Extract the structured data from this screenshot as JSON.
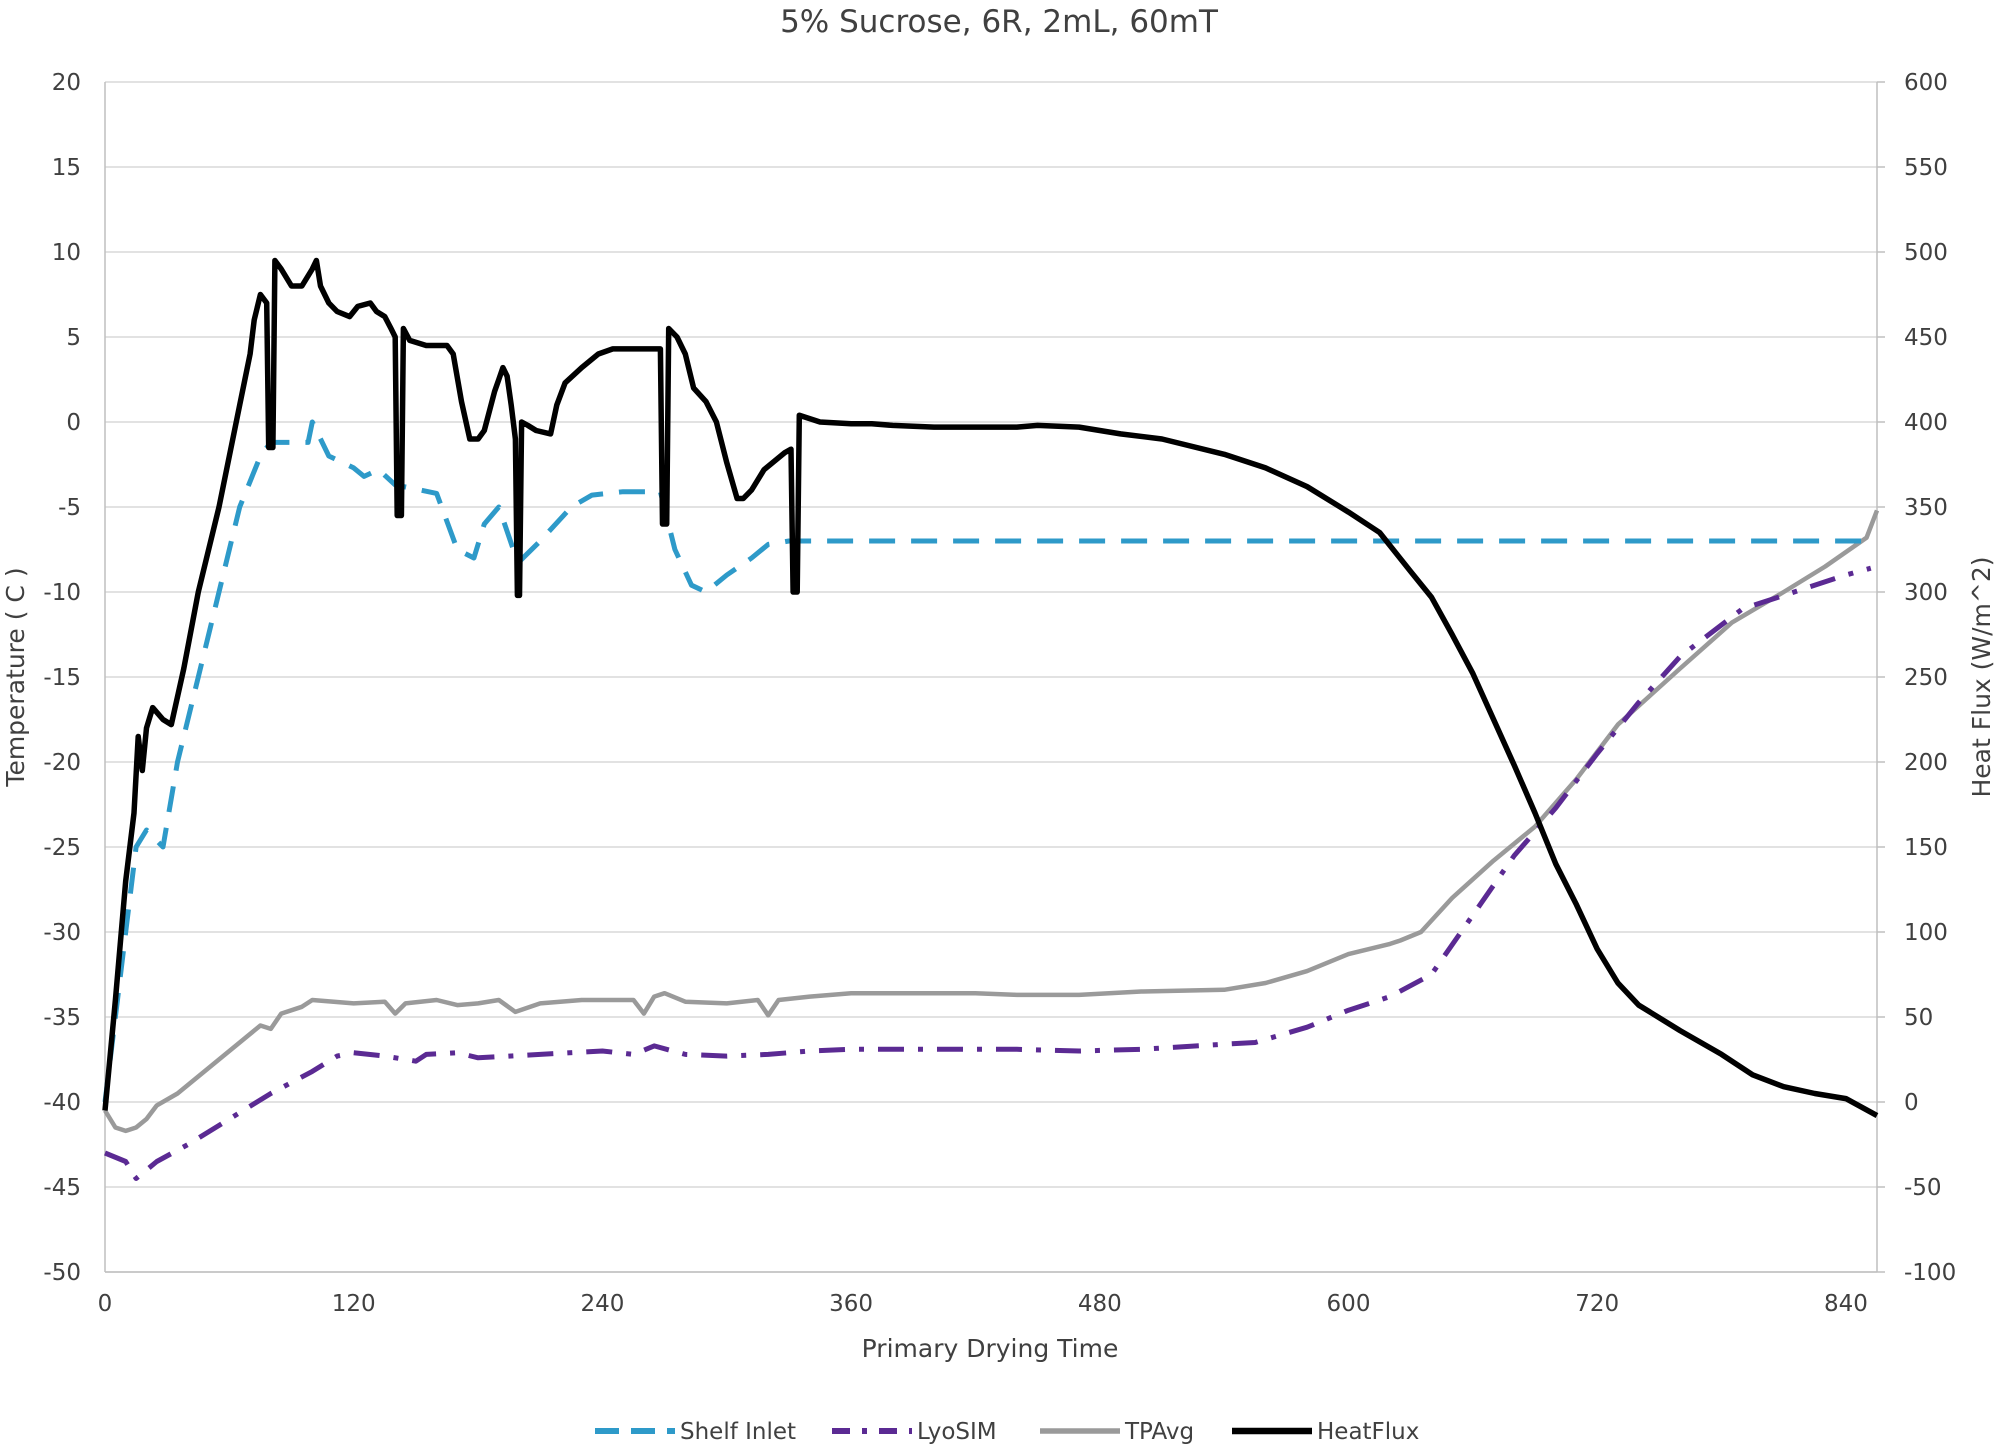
{
  "chart_data": {
    "type": "line",
    "title": "5% Sucrose, 6R, 2mL, 60mT",
    "xlabel": "Primary Drying Time",
    "ylabel": "Temperature ( C )",
    "y2label": "Heat Flux (W/m^2)",
    "xlim": [
      0,
      855
    ],
    "ylim": [
      -50,
      20
    ],
    "y2lim": [
      -100,
      600
    ],
    "xticks": [
      "0",
      "120",
      "240",
      "360",
      "480",
      "600",
      "720",
      "840"
    ],
    "yticks": [
      "20",
      "15",
      "10",
      "5",
      "0",
      "-5",
      "-10",
      "-15",
      "-20",
      "-25",
      "-30",
      "-35",
      "-40",
      "-45",
      "-50"
    ],
    "y2ticks": [
      "600",
      "550",
      "500",
      "450",
      "400",
      "350",
      "300",
      "250",
      "200",
      "150",
      "100",
      "50",
      "0",
      "-50",
      "-100"
    ],
    "grid": "horizontal",
    "legend_position": "bottom",
    "colors": {
      "shelf_inlet": "#2e9ac9",
      "lyosim": "#5b2a93",
      "tpavg": "#9a9a9a",
      "heatflux": "#000000",
      "grid": "#d9d9d9",
      "axis": "#bfbfbf"
    },
    "series": [
      {
        "name": "Shelf Inlet",
        "axis": "left",
        "style": "dashed",
        "points": [
          [
            0,
            -40
          ],
          [
            5,
            -35
          ],
          [
            10,
            -30
          ],
          [
            15,
            -25
          ],
          [
            20,
            -24
          ],
          [
            28,
            -25
          ],
          [
            35,
            -20
          ],
          [
            45,
            -15
          ],
          [
            55,
            -10
          ],
          [
            65,
            -5
          ],
          [
            75,
            -2
          ],
          [
            80,
            -1.2
          ],
          [
            98,
            -1.2
          ],
          [
            100,
            0
          ],
          [
            108,
            -2
          ],
          [
            120,
            -2.7
          ],
          [
            125,
            -3.2
          ],
          [
            132,
            -2.8
          ],
          [
            140,
            -3.7
          ],
          [
            160,
            -4.2
          ],
          [
            170,
            -7.5
          ],
          [
            178,
            -8.0
          ],
          [
            183,
            -6
          ],
          [
            190,
            -5
          ],
          [
            197,
            -7.5
          ],
          [
            200,
            -8.2
          ],
          [
            210,
            -7
          ],
          [
            225,
            -5
          ],
          [
            235,
            -4.3
          ],
          [
            250,
            -4.1
          ],
          [
            268,
            -4.1
          ],
          [
            275,
            -7.5
          ],
          [
            283,
            -9.6
          ],
          [
            290,
            -10.0
          ],
          [
            300,
            -9
          ],
          [
            312,
            -8
          ],
          [
            320,
            -7.2
          ],
          [
            330,
            -7.0
          ],
          [
            855,
            -7.0
          ]
        ]
      },
      {
        "name": "LyoSIM",
        "axis": "left",
        "style": "dashdot",
        "points": [
          [
            0,
            -43
          ],
          [
            10,
            -43.5
          ],
          [
            15,
            -44.5
          ],
          [
            25,
            -43.5
          ],
          [
            40,
            -42.5
          ],
          [
            60,
            -41
          ],
          [
            80,
            -39.5
          ],
          [
            100,
            -38.2
          ],
          [
            112,
            -37.3
          ],
          [
            120,
            -37.1
          ],
          [
            135,
            -37.3
          ],
          [
            150,
            -37.6
          ],
          [
            155,
            -37.2
          ],
          [
            170,
            -37.1
          ],
          [
            180,
            -37.4
          ],
          [
            195,
            -37.3
          ],
          [
            210,
            -37.2
          ],
          [
            240,
            -37.0
          ],
          [
            255,
            -37.2
          ],
          [
            265,
            -36.7
          ],
          [
            280,
            -37.2
          ],
          [
            300,
            -37.3
          ],
          [
            320,
            -37.2
          ],
          [
            340,
            -37.0
          ],
          [
            360,
            -36.9
          ],
          [
            400,
            -36.9
          ],
          [
            440,
            -36.9
          ],
          [
            470,
            -37.0
          ],
          [
            500,
            -36.9
          ],
          [
            540,
            -36.6
          ],
          [
            555,
            -36.5
          ],
          [
            580,
            -35.6
          ],
          [
            600,
            -34.6
          ],
          [
            620,
            -33.8
          ],
          [
            640,
            -32.5
          ],
          [
            660,
            -29.0
          ],
          [
            680,
            -25.5
          ],
          [
            700,
            -22.7
          ],
          [
            720,
            -19.5
          ],
          [
            740,
            -16.5
          ],
          [
            760,
            -13.8
          ],
          [
            790,
            -11.0
          ],
          [
            820,
            -9.8
          ],
          [
            840,
            -9.0
          ],
          [
            852,
            -8.6
          ]
        ]
      },
      {
        "name": "TPAvg",
        "axis": "left",
        "style": "solid",
        "points": [
          [
            0,
            -40.5
          ],
          [
            5,
            -41.5
          ],
          [
            10,
            -41.7
          ],
          [
            15,
            -41.5
          ],
          [
            20,
            -41.0
          ],
          [
            25,
            -40.2
          ],
          [
            35,
            -39.5
          ],
          [
            50,
            -38
          ],
          [
            65,
            -36.5
          ],
          [
            75,
            -35.5
          ],
          [
            80,
            -35.7
          ],
          [
            85,
            -34.8
          ],
          [
            95,
            -34.4
          ],
          [
            100,
            -34.0
          ],
          [
            120,
            -34.2
          ],
          [
            135,
            -34.1
          ],
          [
            140,
            -34.8
          ],
          [
            145,
            -34.2
          ],
          [
            160,
            -34.0
          ],
          [
            170,
            -34.3
          ],
          [
            180,
            -34.2
          ],
          [
            190,
            -34.0
          ],
          [
            198,
            -34.7
          ],
          [
            210,
            -34.2
          ],
          [
            230,
            -34.0
          ],
          [
            255,
            -34.0
          ],
          [
            260,
            -34.8
          ],
          [
            265,
            -33.8
          ],
          [
            270,
            -33.6
          ],
          [
            280,
            -34.1
          ],
          [
            300,
            -34.2
          ],
          [
            315,
            -34.0
          ],
          [
            320,
            -34.9
          ],
          [
            325,
            -34.0
          ],
          [
            340,
            -33.8
          ],
          [
            360,
            -33.6
          ],
          [
            400,
            -33.6
          ],
          [
            420,
            -33.6
          ],
          [
            440,
            -33.7
          ],
          [
            470,
            -33.7
          ],
          [
            500,
            -33.5
          ],
          [
            540,
            -33.4
          ],
          [
            560,
            -33.0
          ],
          [
            580,
            -32.3
          ],
          [
            600,
            -31.3
          ],
          [
            620,
            -30.7
          ],
          [
            625,
            -30.5
          ],
          [
            635,
            -30.0
          ],
          [
            650,
            -28
          ],
          [
            670,
            -25.8
          ],
          [
            690,
            -23.8
          ],
          [
            710,
            -21
          ],
          [
            730,
            -17.8
          ],
          [
            760,
            -14.5
          ],
          [
            785,
            -11.8
          ],
          [
            810,
            -10.0
          ],
          [
            830,
            -8.5
          ],
          [
            850,
            -6.8
          ],
          [
            855,
            -5.2
          ]
        ]
      },
      {
        "name": "HeatFlux",
        "axis": "right",
        "style": "solid",
        "points": [
          [
            0,
            -5
          ],
          [
            5,
            60
          ],
          [
            10,
            130
          ],
          [
            14,
            170
          ],
          [
            16,
            215
          ],
          [
            18,
            195
          ],
          [
            20,
            220
          ],
          [
            23,
            232
          ],
          [
            28,
            225
          ],
          [
            32,
            222
          ],
          [
            38,
            255
          ],
          [
            45,
            300
          ],
          [
            55,
            350
          ],
          [
            65,
            410
          ],
          [
            70,
            440
          ],
          [
            72,
            460
          ],
          [
            75,
            475
          ],
          [
            78,
            470
          ],
          [
            79,
            385
          ],
          [
            81,
            385
          ],
          [
            82,
            495
          ],
          [
            85,
            490
          ],
          [
            90,
            480
          ],
          [
            95,
            480
          ],
          [
            100,
            490
          ],
          [
            102,
            495
          ],
          [
            104,
            480
          ],
          [
            108,
            470
          ],
          [
            112,
            465
          ],
          [
            118,
            462
          ],
          [
            122,
            468
          ],
          [
            128,
            470
          ],
          [
            131,
            465
          ],
          [
            135,
            462
          ],
          [
            138,
            455
          ],
          [
            140,
            450
          ],
          [
            141,
            345
          ],
          [
            143,
            345
          ],
          [
            144,
            455
          ],
          [
            147,
            448
          ],
          [
            155,
            445
          ],
          [
            165,
            445
          ],
          [
            168,
            440
          ],
          [
            172,
            412
          ],
          [
            176,
            390
          ],
          [
            180,
            390
          ],
          [
            183,
            395
          ],
          [
            188,
            418
          ],
          [
            190,
            425
          ],
          [
            192,
            432
          ],
          [
            194,
            427
          ],
          [
            196,
            410
          ],
          [
            198,
            390
          ],
          [
            199,
            298
          ],
          [
            200,
            298
          ],
          [
            201,
            400
          ],
          [
            204,
            398
          ],
          [
            208,
            395
          ],
          [
            215,
            393
          ],
          [
            218,
            410
          ],
          [
            222,
            423
          ],
          [
            230,
            432
          ],
          [
            238,
            440
          ],
          [
            245,
            443
          ],
          [
            262,
            443
          ],
          [
            268,
            443
          ],
          [
            269,
            340
          ],
          [
            271,
            340
          ],
          [
            272,
            455
          ],
          [
            276,
            450
          ],
          [
            280,
            440
          ],
          [
            284,
            420
          ],
          [
            290,
            412
          ],
          [
            295,
            400
          ],
          [
            300,
            376
          ],
          [
            305,
            355
          ],
          [
            308,
            355
          ],
          [
            312,
            360
          ],
          [
            318,
            372
          ],
          [
            328,
            382
          ],
          [
            331,
            384
          ],
          [
            332,
            300
          ],
          [
            334,
            300
          ],
          [
            335,
            404
          ],
          [
            345,
            400
          ],
          [
            360,
            399
          ],
          [
            370,
            399
          ],
          [
            380,
            398
          ],
          [
            400,
            397
          ],
          [
            420,
            397
          ],
          [
            440,
            397
          ],
          [
            450,
            398
          ],
          [
            470,
            397
          ],
          [
            490,
            393
          ],
          [
            510,
            390
          ],
          [
            540,
            381
          ],
          [
            560,
            373
          ],
          [
            580,
            362
          ],
          [
            600,
            347
          ],
          [
            615,
            335
          ],
          [
            630,
            312
          ],
          [
            640,
            297
          ],
          [
            650,
            275
          ],
          [
            660,
            252
          ],
          [
            670,
            225
          ],
          [
            680,
            198
          ],
          [
            690,
            170
          ],
          [
            700,
            140
          ],
          [
            710,
            116
          ],
          [
            720,
            90
          ],
          [
            730,
            70
          ],
          [
            740,
            57
          ],
          [
            760,
            42
          ],
          [
            780,
            28
          ],
          [
            795,
            16
          ],
          [
            810,
            9
          ],
          [
            825,
            5
          ],
          [
            840,
            2
          ],
          [
            855,
            -8
          ]
        ]
      }
    ]
  }
}
